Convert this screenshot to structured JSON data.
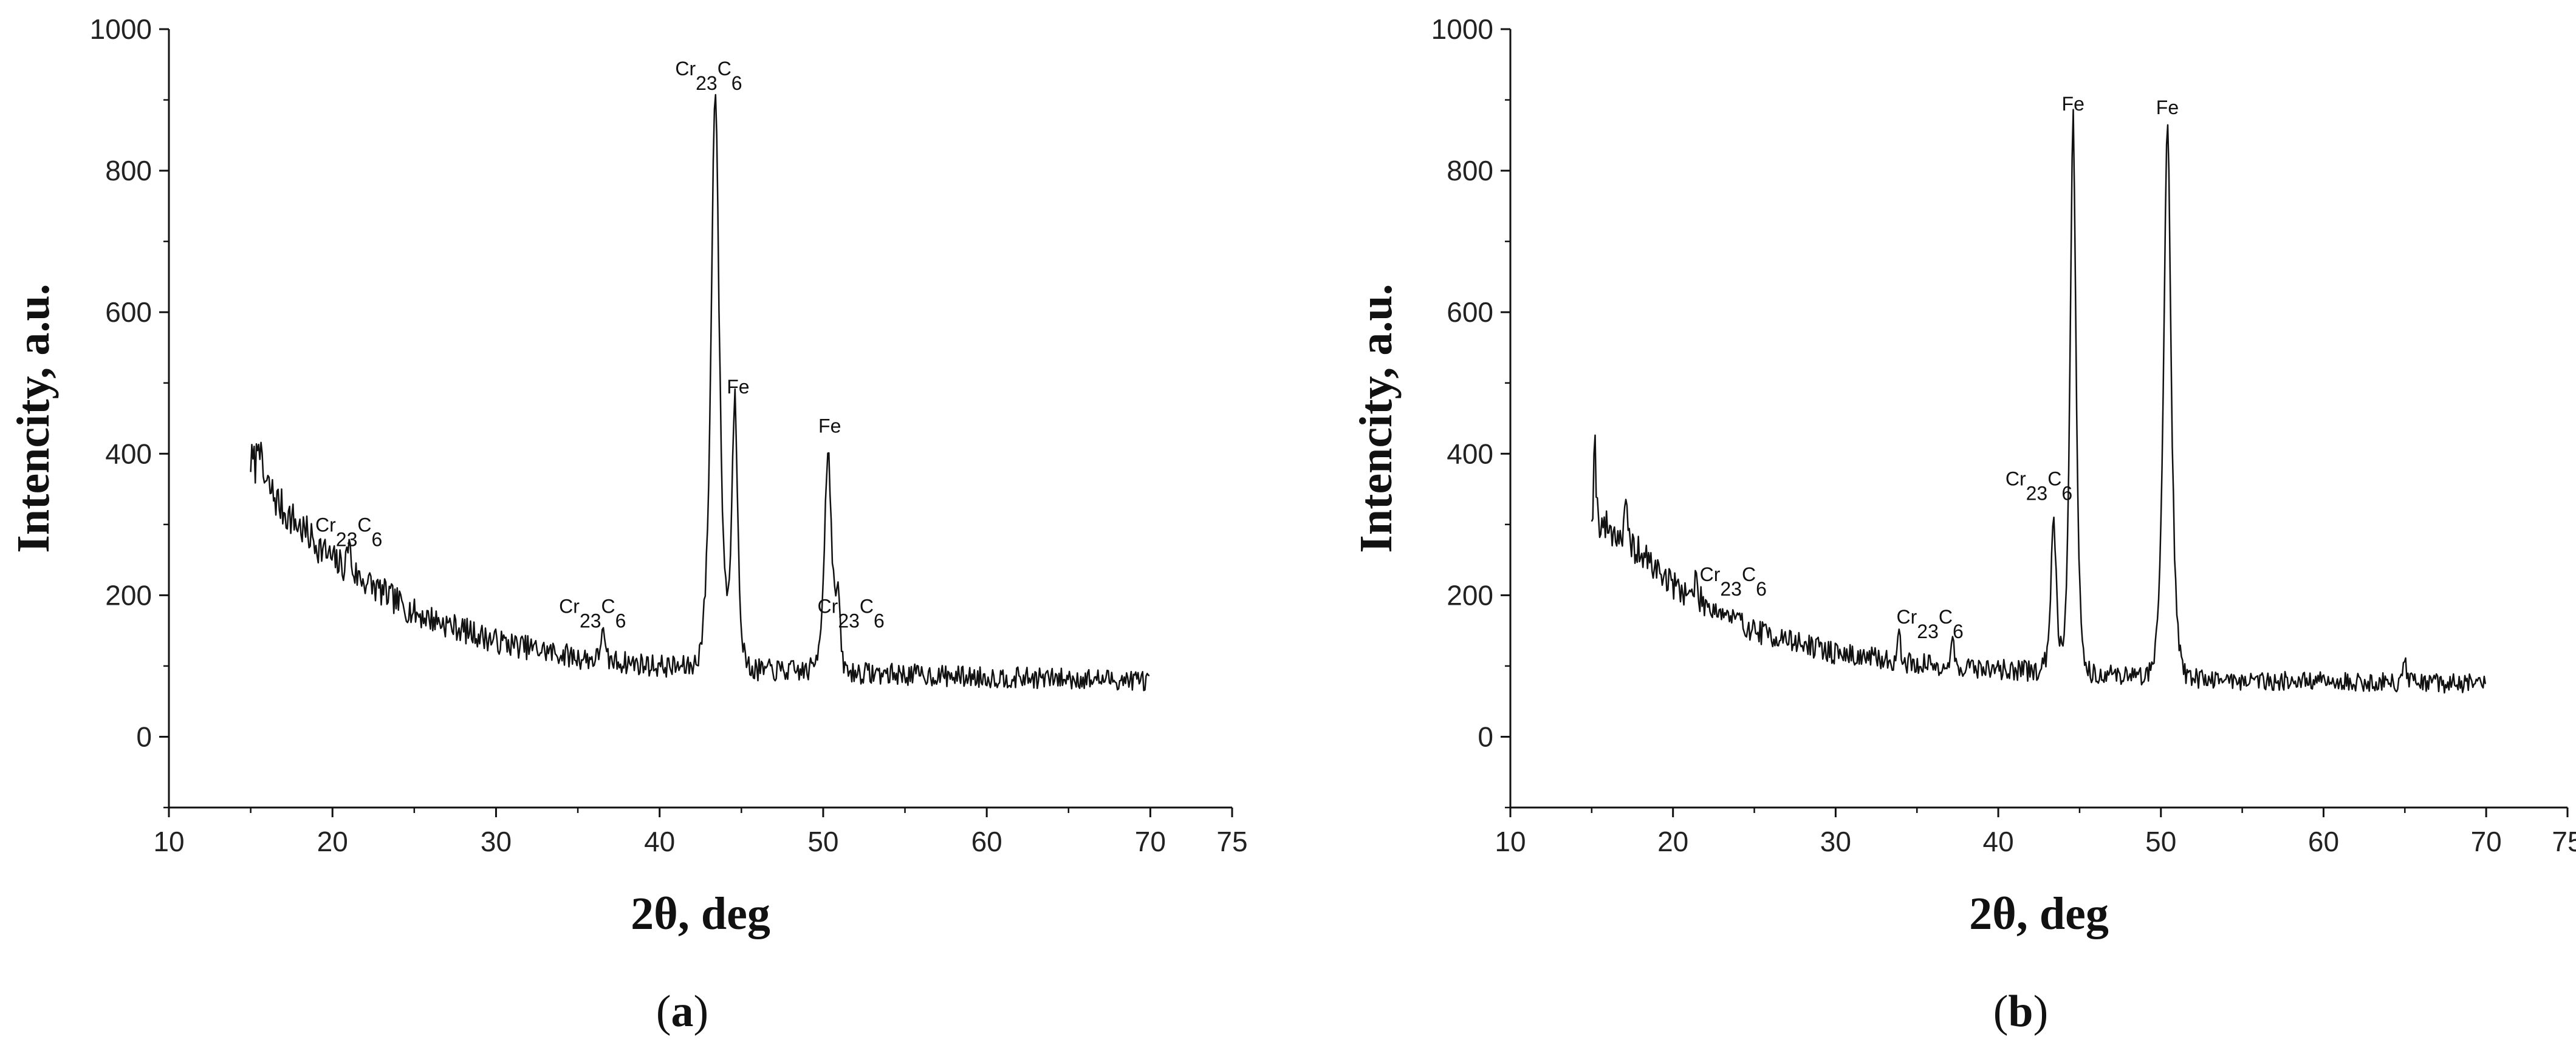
{
  "chart_data": [
    {
      "type": "line",
      "panel": "(a)",
      "xlabel": "2θ, deg",
      "ylabel": "Intencity, a.u.",
      "xlim": [
        10,
        75
      ],
      "ylim": [
        -100,
        1000
      ],
      "xticks": [
        10,
        20,
        30,
        40,
        50,
        60,
        70
      ],
      "yticks": [
        0,
        200,
        400,
        600,
        800,
        1000
      ],
      "grid": false,
      "baseline": {
        "x": [
          15,
          17,
          20,
          25,
          30,
          35,
          40,
          45,
          50,
          55,
          60,
          65,
          70
        ],
        "y": [
          390,
          320,
          250,
          175,
          135,
          112,
          100,
          95,
          92,
          88,
          84,
          82,
          80
        ]
      },
      "peaks": [
        {
          "x": 43.4,
          "y": 920,
          "width": 0.33
        },
        {
          "x": 44.6,
          "y": 475,
          "width": 0.24
        },
        {
          "x": 50.3,
          "y": 405,
          "width": 0.3
        },
        {
          "x": 21.0,
          "y": 280,
          "width": 0.12
        },
        {
          "x": 36.5,
          "y": 160,
          "width": 0.12
        },
        {
          "x": 50.9,
          "y": 185,
          "width": 0.15
        },
        {
          "x": 15.5,
          "y": 440,
          "width": 0.1
        }
      ],
      "noise_amplitude": 15,
      "seed": 7,
      "annotations": [
        {
          "text": "Cr",
          "sub1": "23",
          "c": "C",
          "sub2": "6",
          "x": 21.0,
          "y": 290
        },
        {
          "text": "Cr",
          "sub1": "23",
          "c": "C",
          "sub2": "6",
          "x": 35.9,
          "y": 175
        },
        {
          "text": "Cr",
          "sub1": "23",
          "c": "C",
          "sub2": "6",
          "x": 43.0,
          "y": 935
        },
        {
          "text": "Fe",
          "x": 44.8,
          "y": 485
        },
        {
          "text": "Fe",
          "x": 50.4,
          "y": 430
        },
        {
          "text": "Cr",
          "sub1": "23",
          "c": "C",
          "sub2": "6",
          "x": 51.7,
          "y": 175
        }
      ]
    },
    {
      "type": "line",
      "panel": "(b)",
      "xlabel": "2θ, deg",
      "ylabel": "Intencity, a.u.",
      "xlim": [
        10,
        75
      ],
      "ylim": [
        -100,
        1000
      ],
      "xticks": [
        10,
        20,
        30,
        40,
        50,
        60,
        70
      ],
      "yticks": [
        0,
        200,
        400,
        600,
        800,
        1000
      ],
      "grid": false,
      "baseline": {
        "x": [
          15,
          17,
          20,
          25,
          30,
          35,
          40,
          45,
          50,
          55,
          60,
          65,
          70
        ],
        "y": [
          310,
          280,
          215,
          150,
          118,
          103,
          95,
          90,
          85,
          80,
          78,
          76,
          75
        ]
      },
      "peaks": [
        {
          "x": 44.6,
          "y": 875,
          "width": 0.24
        },
        {
          "x": 50.4,
          "y": 870,
          "width": 0.3
        },
        {
          "x": 43.4,
          "y": 315,
          "width": 0.22
        },
        {
          "x": 15.2,
          "y": 435,
          "width": 0.08
        },
        {
          "x": 17.1,
          "y": 335,
          "width": 0.08
        },
        {
          "x": 21.4,
          "y": 230,
          "width": 0.08
        },
        {
          "x": 33.9,
          "y": 160,
          "width": 0.08
        },
        {
          "x": 37.2,
          "y": 140,
          "width": 0.1
        },
        {
          "x": 65.0,
          "y": 105,
          "width": 0.15
        }
      ],
      "noise_amplitude": 14,
      "seed": 19,
      "annotations": [
        {
          "text": "Cr",
          "sub1": "23",
          "c": "C",
          "sub2": "6",
          "x": 23.7,
          "y": 220
        },
        {
          "text": "Cr",
          "sub1": "23",
          "c": "C",
          "sub2": "6",
          "x": 35.8,
          "y": 160
        },
        {
          "text": "Cr",
          "sub1": "23",
          "c": "C",
          "sub2": "6",
          "x": 42.5,
          "y": 355
        },
        {
          "text": "Fe",
          "x": 44.6,
          "y": 885
        },
        {
          "text": "Fe",
          "x": 50.4,
          "y": 880
        }
      ]
    }
  ]
}
